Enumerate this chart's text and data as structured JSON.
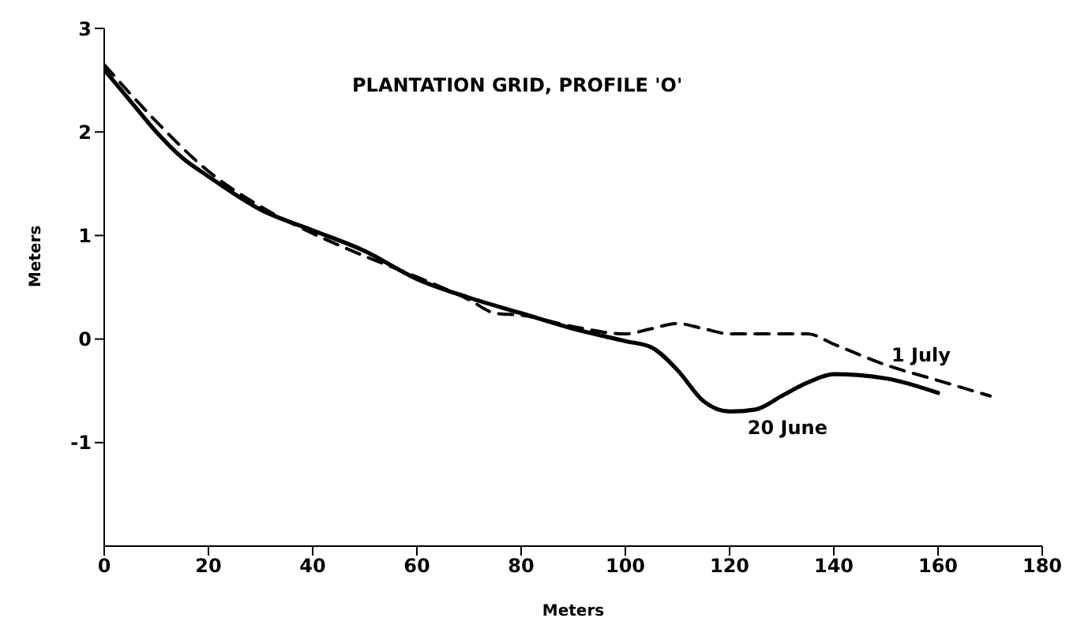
{
  "chart_data": {
    "type": "line",
    "title": "PLANTATION GRID, PROFILE 'O'",
    "xlabel": "Meters",
    "ylabel": "Meters",
    "xlim": [
      0,
      180
    ],
    "xticks": [
      0,
      20,
      40,
      60,
      80,
      100,
      120,
      140,
      160,
      180
    ],
    "ylim": [
      -2,
      3
    ],
    "yticks": [
      -1,
      0,
      1,
      2,
      3
    ],
    "grid": false,
    "legend": false,
    "marker": "none",
    "series": [
      {
        "name": "20 June",
        "color": "#000000",
        "line_style": "solid",
        "x": [
          0,
          5,
          10,
          15,
          20,
          30,
          40,
          50,
          60,
          70,
          80,
          90,
          100,
          105,
          110,
          115,
          120,
          125,
          130,
          135,
          140,
          150,
          160
        ],
        "values": [
          2.6,
          2.3,
          2.0,
          1.75,
          1.57,
          1.25,
          1.05,
          0.85,
          0.58,
          0.4,
          0.25,
          0.1,
          -0.02,
          -0.08,
          -0.3,
          -0.6,
          -0.7,
          -0.68,
          -0.55,
          -0.42,
          -0.34,
          -0.38,
          -0.52
        ]
      },
      {
        "name": "1 July",
        "color": "#000000",
        "line_style": "dashed",
        "x": [
          0,
          10,
          20,
          30,
          40,
          50,
          60,
          70,
          75,
          80,
          90,
          100,
          105,
          110,
          115,
          120,
          130,
          135,
          140,
          150,
          160,
          170
        ],
        "values": [
          2.65,
          2.1,
          1.62,
          1.28,
          1.02,
          0.8,
          0.6,
          0.38,
          0.25,
          0.23,
          0.12,
          0.05,
          0.1,
          0.15,
          0.1,
          0.05,
          0.05,
          0.05,
          -0.05,
          -0.25,
          -0.4,
          -0.55
        ]
      }
    ]
  }
}
